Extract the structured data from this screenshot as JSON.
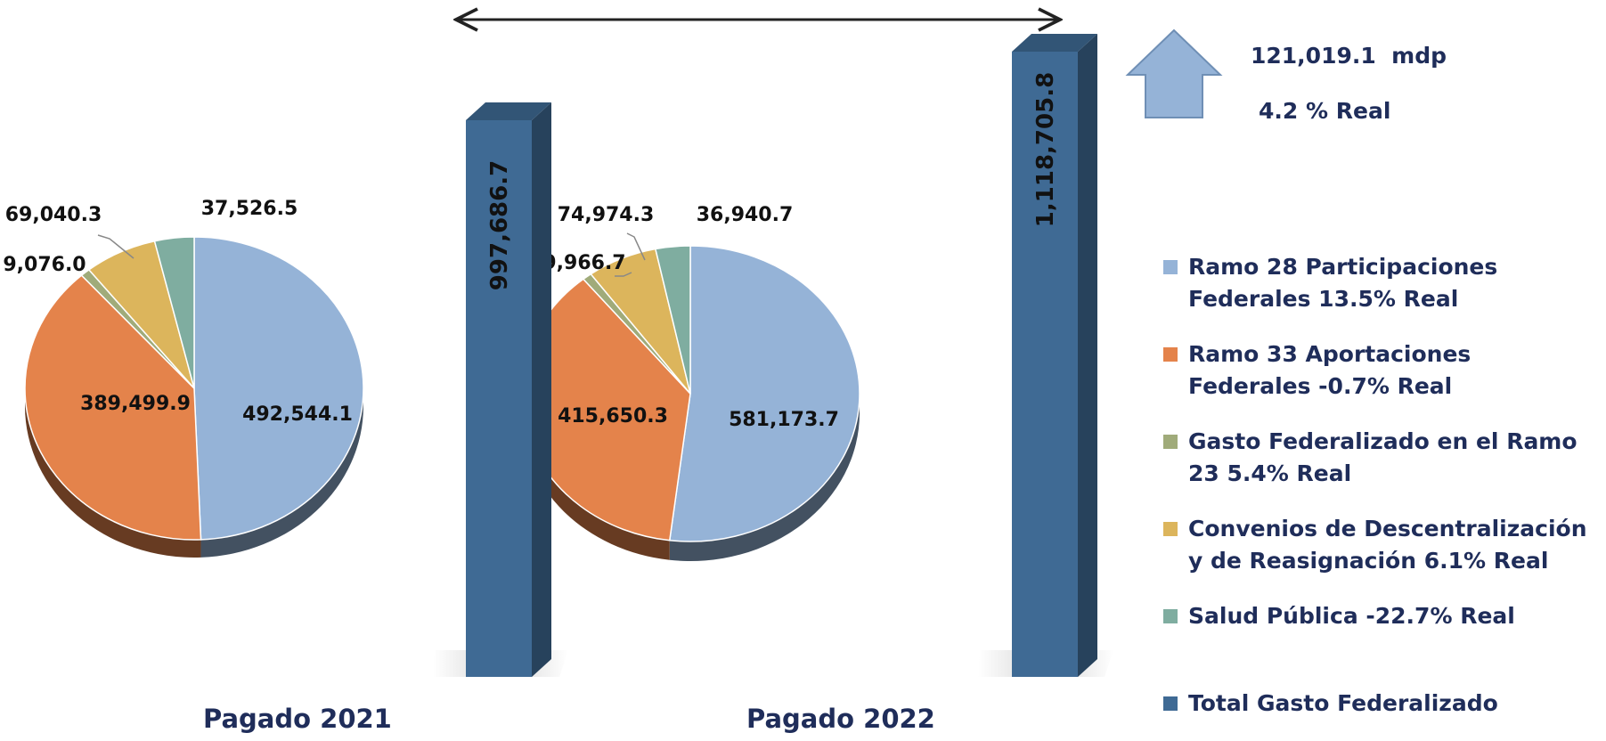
{
  "chart_data": [
    {
      "type": "pie",
      "title": "Pagado 2021",
      "categories": [
        "Ramo 28 Participaciones Federales",
        "Ramo 33 Aportaciones Federales",
        "Gasto Federalizado en el Ramo 23",
        "Convenios de Descentralización y de Reasignación",
        "Salud Pública"
      ],
      "values": [
        492544.1,
        389499.9,
        9076.0,
        69040.3,
        37526.5
      ],
      "value_labels": [
        "492,544.1",
        "389,499.9",
        "9,076.0",
        "69,040.3",
        "37,526.5"
      ],
      "total": 997686.7,
      "total_label": "997,686.7"
    },
    {
      "type": "pie",
      "title": "Pagado 2022",
      "categories": [
        "Ramo 28 Participaciones Federales",
        "Ramo 33 Aportaciones Federales",
        "Gasto Federalizado en el Ramo 23",
        "Convenios de Descentralización y de Reasignación",
        "Salud Pública"
      ],
      "values": [
        581173.7,
        415650.3,
        9966.7,
        74974.3,
        36940.7
      ],
      "value_labels": [
        "581,173.7",
        "415,650.3",
        "9,966.7",
        "74,974.3",
        "36,940.7"
      ],
      "total": 1118705.8,
      "total_label": "1,118,705.8"
    }
  ],
  "colors": [
    "#95b3d7",
    "#e4834b",
    "#a0ab7a",
    "#dcb55c",
    "#7fada0"
  ],
  "total_color": "#3f6a94",
  "legend": [
    {
      "label": "Ramo 28 Participaciones Federales 13.5% Real",
      "color": "#95b3d7"
    },
    {
      "label": "Ramo 33 Aportaciones Federales -0.7% Real",
      "color": "#e4834b"
    },
    {
      "label": "Gasto Federalizado en el Ramo 23 5.4% Real",
      "color": "#a0ab7a"
    },
    {
      "label": "Convenios de Descentralización y de Reasignación 6.1% Real",
      "color": "#dcb55c"
    },
    {
      "label": "Salud Pública -22.7% Real",
      "color": "#7fada0"
    },
    {
      "label": "Total Gasto Federalizado",
      "color": "#3f6a94"
    }
  ],
  "increase": {
    "amount": "121,019.1  mdp",
    "real": "4.2 % Real"
  },
  "years": [
    "Pagado 2021",
    "Pagado 2022"
  ]
}
